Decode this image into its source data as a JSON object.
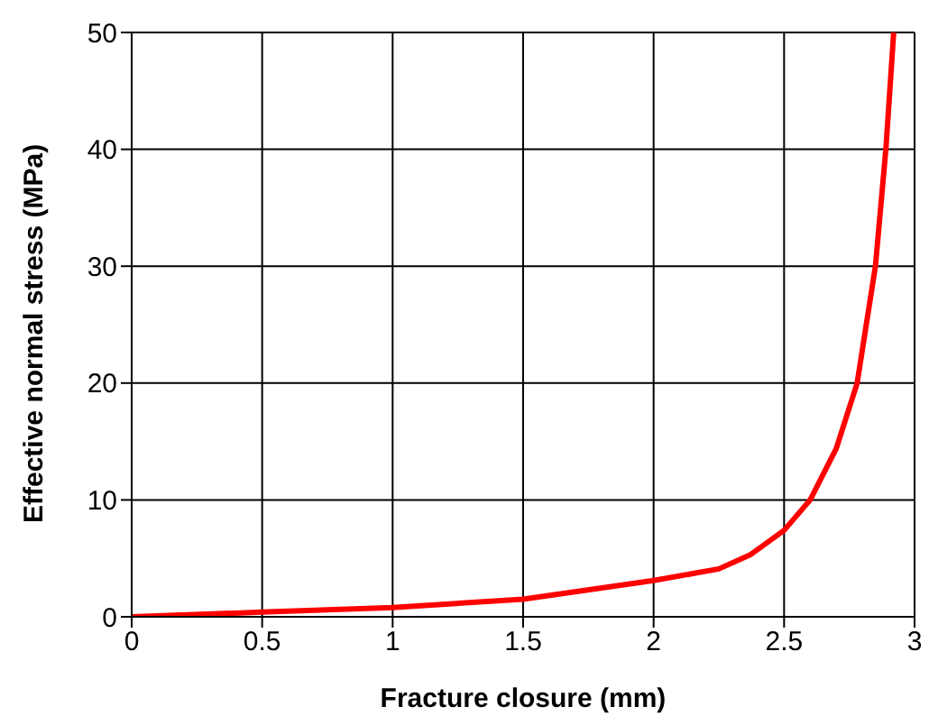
{
  "chart_data": {
    "type": "line",
    "xlabel": "Fracture closure (mm)",
    "ylabel": "Effective normal stress (MPa)",
    "x": [
      0,
      0.5,
      1,
      1.5,
      2,
      2.25,
      2.37,
      2.5,
      2.6,
      2.7,
      2.78,
      2.85,
      2.89,
      2.92
    ],
    "series": [
      {
        "color": "#ff0000",
        "values": [
          0,
          0.4,
          0.8,
          1.5,
          3.1,
          4.1,
          5.3,
          7.4,
          10,
          14.4,
          20,
          30,
          40,
          50
        ]
      }
    ],
    "xlim": [
      0,
      3
    ],
    "xticks": [
      0,
      0.5,
      1,
      1.5,
      2,
      2.5,
      3
    ],
    "ylim": [
      0,
      50
    ],
    "yticks": [
      0,
      10,
      20,
      30,
      40,
      50
    ],
    "grid": true,
    "marker": "none",
    "line_style": "solid"
  }
}
